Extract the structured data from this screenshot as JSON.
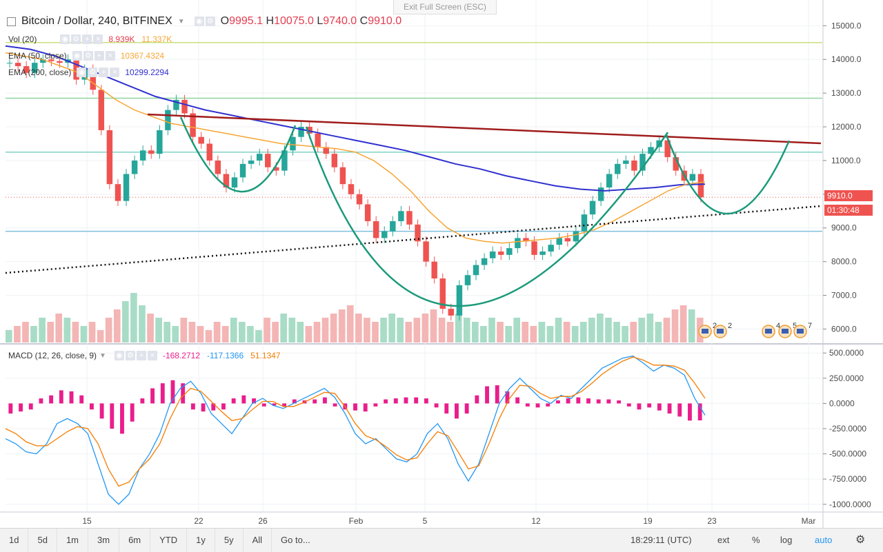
{
  "header": {
    "symbol_title": "Bitcoin / Dollar, 240, BITFINEX",
    "exit_fullscreen": "Exit Full Screen (ESC)",
    "ohlc": {
      "o_label": "O",
      "o": "9995.1",
      "h_label": "H",
      "h": "10075.0",
      "l_label": "L",
      "l": "9740.0",
      "c_label": "C",
      "c": "9910.0"
    }
  },
  "indicators": {
    "vol": {
      "label": "Vol (20)",
      "v1": "8.939K",
      "v2": "11.337K"
    },
    "ema50": {
      "label": "EMA (50, close)",
      "value": "10367.4324"
    },
    "ema200": {
      "label": "EMA (200, close)",
      "value": "10299.2294"
    },
    "macd": {
      "label": "MACD (12, 26, close, 9)",
      "hist": "-168.2712",
      "macd": "-117.1366",
      "signal": "51.1347"
    }
  },
  "price_tags": {
    "last": "9910.0",
    "countdown": "01:30:48"
  },
  "events": {
    "e1": "2",
    "e2": "2",
    "e3": "4",
    "e4": "5",
    "e5": "7"
  },
  "toolbar": {
    "ranges": [
      "1d",
      "5d",
      "1m",
      "3m",
      "6m",
      "YTD",
      "1y",
      "5y",
      "All"
    ],
    "goto": "Go to...",
    "clock": "18:29:11 (UTC)",
    "ext": "ext",
    "percent": "%",
    "log": "log",
    "auto": "auto"
  },
  "colors": {
    "up": "#26a69a",
    "down": "#ef5350",
    "ema50": "#f7a534",
    "ema200": "#3030d0",
    "trend": "#a01c1c",
    "cup": "#1a9a7a",
    "macd": "#2196f3",
    "signal": "#f57c00",
    "hist": "#e91e8c"
  },
  "chart_data": [
    {
      "type": "candlestick",
      "title": "Bitcoin / Dollar, 240, BITFINEX",
      "x_ticks": [
        "15",
        "22",
        "26",
        "Feb",
        "5",
        "12",
        "19",
        "23",
        "Mar"
      ],
      "y_ticks": [
        6000,
        7000,
        8000,
        9000,
        10000,
        11000,
        12000,
        13000,
        14000,
        15000
      ],
      "ylim": [
        5600,
        15600
      ],
      "price_close_sampled": [
        13900,
        13800,
        13600,
        13900,
        14000,
        13950,
        13900,
        14000,
        13400,
        13700,
        13100,
        11900,
        10300,
        9800,
        10600,
        11000,
        11300,
        11200,
        11900,
        12500,
        12800,
        12400,
        11700,
        11500,
        11000,
        10600,
        10200,
        10500,
        10900,
        11000,
        11200,
        10800,
        10700,
        11300,
        11700,
        12000,
        11800,
        11400,
        11200,
        10800,
        10300,
        10000,
        9700,
        9200,
        8700,
        8900,
        9200,
        9500,
        9100,
        8600,
        8000,
        7500,
        6600,
        6400,
        7300,
        7600,
        7900,
        8100,
        8300,
        8200,
        8400,
        8700,
        8600,
        8200,
        8300,
        8500,
        8700,
        8600,
        8900,
        9400,
        9800,
        10200,
        10600,
        10900,
        11000,
        10700,
        11200,
        11400,
        11600,
        11100,
        10700,
        10400,
        10600,
        9910
      ],
      "ema50_sampled": [
        14200,
        14100,
        14000,
        13800,
        13600,
        13200,
        12800,
        12500,
        12300,
        12100,
        12000,
        11900,
        11800,
        11700,
        11600,
        11500,
        11450,
        11400,
        11350,
        11250,
        11000,
        10600,
        10100,
        9500,
        9000,
        8700,
        8600,
        8550,
        8600,
        8650,
        8700,
        8800,
        8950,
        9200,
        9500,
        9800,
        10100,
        10300,
        10367
      ],
      "ema200_sampled": [
        14400,
        14300,
        14100,
        13800,
        13500,
        13200,
        12900,
        12700,
        12500,
        12350,
        12200,
        12050,
        11900,
        11750,
        11600,
        11450,
        11300,
        11100,
        10900,
        10750,
        10550,
        10400,
        10250,
        10150,
        10100,
        10150,
        10200,
        10280,
        10300
      ],
      "volume_k": [
        3,
        4,
        5,
        4,
        6,
        5,
        7,
        6,
        5,
        4,
        5,
        3,
        6,
        8,
        10,
        12,
        9,
        7,
        6,
        5,
        4,
        6,
        5,
        4,
        3,
        5,
        4,
        6,
        5,
        4,
        3,
        6,
        5,
        7,
        6,
        5,
        4,
        5,
        6,
        7,
        8,
        9,
        7,
        6,
        5,
        6,
        7,
        6,
        5,
        6,
        7,
        8,
        6,
        5,
        7,
        6,
        5,
        4,
        6,
        5,
        4,
        6,
        5,
        4,
        5,
        4,
        6,
        5,
        4,
        5,
        6,
        7,
        6,
        5,
        4,
        5,
        6,
        7,
        5,
        6,
        8,
        9,
        8,
        6
      ]
    },
    {
      "type": "line",
      "title": "MACD (12, 26, close, 9)",
      "y_ticks": [
        -1000,
        -750,
        -500,
        -250,
        0,
        250,
        500
      ],
      "ylim": [
        -1070,
        570
      ],
      "series": [
        {
          "name": "macd",
          "values": [
            -350,
            -400,
            -480,
            -500,
            -400,
            -200,
            -150,
            -200,
            -300,
            -600,
            -900,
            -1000,
            -900,
            -650,
            -500,
            -300,
            0,
            150,
            220,
            100,
            -100,
            -200,
            -300,
            -150,
            0,
            50,
            -20,
            -50,
            0,
            50,
            100,
            150,
            60,
            -100,
            -300,
            -400,
            -350,
            -450,
            -550,
            -580,
            -500,
            -300,
            -200,
            -350,
            -600,
            -770,
            -600,
            -300,
            0,
            150,
            250,
            150,
            50,
            0,
            80,
            50,
            150,
            250,
            350,
            400,
            450,
            470,
            400,
            320,
            380,
            350,
            280,
            50,
            -117
          ]
        },
        {
          "name": "signal",
          "values": [
            -250,
            -300,
            -380,
            -420,
            -420,
            -350,
            -280,
            -230,
            -250,
            -400,
            -650,
            -820,
            -780,
            -650,
            -550,
            -400,
            -150,
            50,
            150,
            120,
            20,
            -80,
            -170,
            -150,
            -60,
            20,
            20,
            -30,
            -30,
            10,
            60,
            110,
            100,
            -30,
            -200,
            -320,
            -360,
            -430,
            -510,
            -560,
            -540,
            -400,
            -280,
            -320,
            -480,
            -650,
            -620,
            -400,
            -150,
            50,
            180,
            170,
            100,
            50,
            70,
            70,
            120,
            200,
            290,
            360,
            420,
            460,
            430,
            380,
            380,
            370,
            330,
            200,
            51
          ]
        }
      ],
      "histogram": [
        -100,
        -80,
        -60,
        50,
        80,
        130,
        120,
        80,
        -60,
        -150,
        -250,
        -300,
        -180,
        50,
        150,
        200,
        230,
        200,
        -60,
        -80,
        -70,
        -60,
        50,
        80,
        50,
        -30,
        -20,
        -30,
        40,
        30,
        40,
        60,
        -30,
        -60,
        -70,
        -80,
        -30,
        40,
        50,
        60,
        60,
        50,
        -40,
        -100,
        -150,
        -100,
        80,
        170,
        180,
        120,
        60,
        -30,
        -40,
        -30,
        30,
        50,
        60,
        50,
        40,
        40,
        30,
        -30,
        -60,
        -40,
        -70,
        -100,
        -130,
        -170,
        -168
      ]
    }
  ]
}
